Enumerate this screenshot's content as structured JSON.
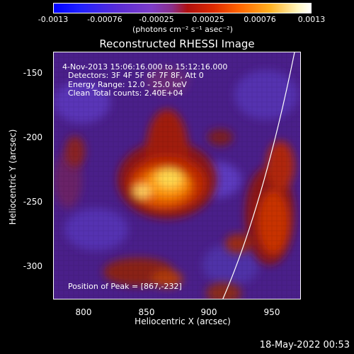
{
  "colorbar": {
    "ticks": [
      "-0.0013",
      "-0.00076",
      "-0.00025",
      "0.00025",
      "0.00076",
      "0.0013"
    ],
    "unit": "(photons cm⁻² s⁻¹ asec⁻²)"
  },
  "title": "Reconstructed RHESSI Image",
  "annotations": {
    "time": "4-Nov-2013 15:06:16.000 to 15:12:16.000",
    "detectors": "Detectors: 3F 4F 5F 6F 7F 8F, Att 0",
    "energy": "Energy Range: 12.0 - 25.0 keV",
    "clean": "Clean     Total counts: 2.40E+04",
    "peak": "Position of Peak = [867,-232]"
  },
  "axes": {
    "xlabel": "Heliocentric X (arcsec)",
    "ylabel": "Heliocentric Y (arcsec)",
    "xticks": [
      "800",
      "850",
      "900",
      "950"
    ],
    "yticks": [
      "-150",
      "-200",
      "-250",
      "-300"
    ],
    "xlim": [
      777,
      970
    ],
    "ylim": [
      -326,
      -135
    ]
  },
  "footer_date": "18-May-2022 00:53",
  "colors": {
    "background": "#000000",
    "plot_base": "#4a1f8a",
    "limb": "#ffffff"
  }
}
